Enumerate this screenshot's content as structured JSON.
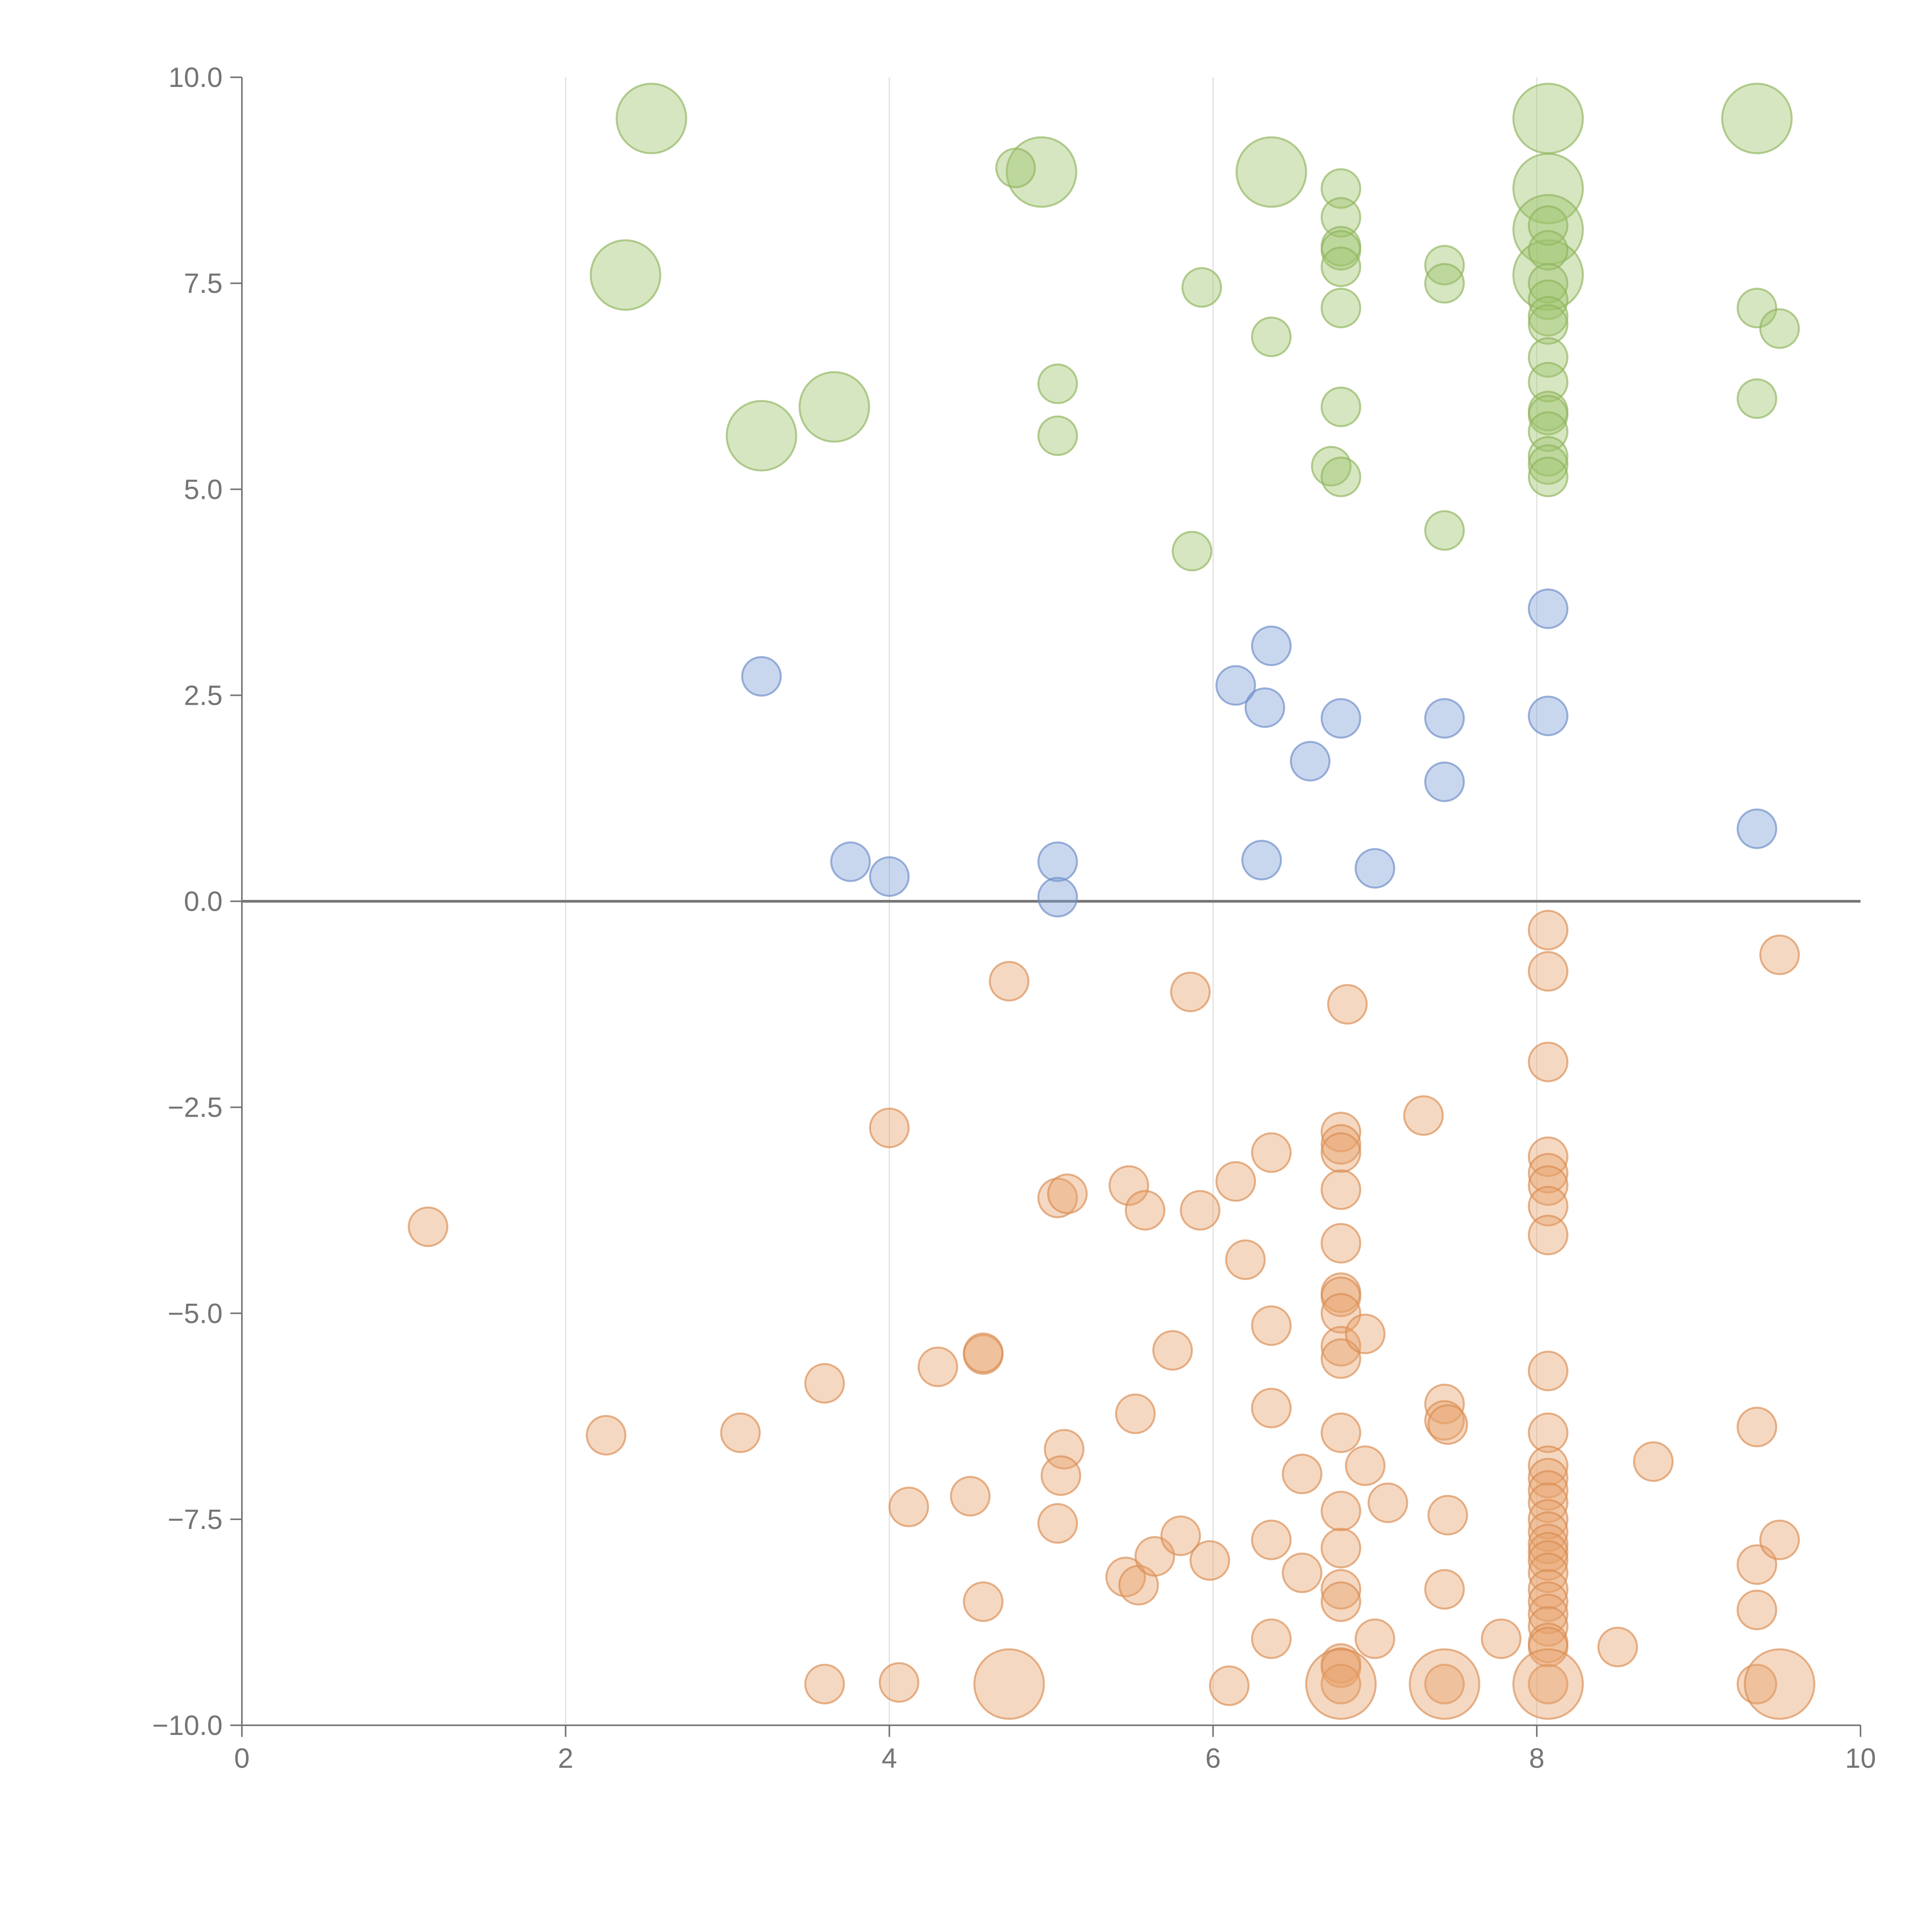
{
  "chart_data": {
    "type": "scatter",
    "title": "",
    "xlabel": "",
    "ylabel": "",
    "xlim": [
      0,
      10
    ],
    "ylim": [
      -10,
      10
    ],
    "x_ticks": [
      "0",
      "2",
      "4",
      "6",
      "8",
      "10"
    ],
    "y_ticks": [
      "10.0",
      "7.5",
      "5.0",
      "2.5",
      "0.0",
      "−2.5",
      "−5.0",
      "−7.5",
      "−10.0"
    ],
    "x_grid": true,
    "zero_line": true,
    "legend": "none",
    "colors": {
      "green": "#9dc36b",
      "blue": "#7f9fd6",
      "orange": "#e8a36b",
      "green_stroke": "#8fb45c",
      "blue_stroke": "#6a8bc6",
      "orange_stroke": "#d98c52",
      "axis": "#757575",
      "grid": "#e0e0e0",
      "zero_line": "#777777"
    },
    "series": [
      {
        "name": "green",
        "color_key": "green",
        "points": [
          [
            2.53,
            9.5,
            3
          ],
          [
            2.37,
            7.6,
            3
          ],
          [
            3.66,
            6.0,
            3
          ],
          [
            3.21,
            5.65,
            3
          ],
          [
            4.94,
            8.85,
            3
          ],
          [
            4.78,
            8.9,
            1
          ],
          [
            5.04,
            6.28,
            1
          ],
          [
            5.04,
            5.65,
            1
          ],
          [
            5.93,
            7.45,
            1
          ],
          [
            5.87,
            4.25,
            1
          ],
          [
            6.36,
            8.85,
            3
          ],
          [
            6.36,
            6.85,
            1
          ],
          [
            6.79,
            8.65,
            1
          ],
          [
            6.79,
            8.3,
            1
          ],
          [
            6.79,
            7.95,
            1
          ],
          [
            6.79,
            7.9,
            1
          ],
          [
            6.79,
            7.7,
            1
          ],
          [
            6.79,
            7.2,
            1
          ],
          [
            6.79,
            6.0,
            1
          ],
          [
            6.73,
            5.28,
            1
          ],
          [
            6.79,
            5.15,
            1
          ],
          [
            7.43,
            7.72,
            1
          ],
          [
            7.43,
            7.5,
            1
          ],
          [
            7.43,
            4.5,
            1
          ],
          [
            8.07,
            9.5,
            3
          ],
          [
            8.07,
            8.65,
            3
          ],
          [
            8.07,
            8.15,
            3
          ],
          [
            8.07,
            7.6,
            3
          ],
          [
            8.07,
            8.2,
            1
          ],
          [
            8.07,
            7.9,
            1
          ],
          [
            8.07,
            7.5,
            1
          ],
          [
            8.07,
            7.3,
            1
          ],
          [
            8.07,
            7.1,
            1
          ],
          [
            8.07,
            7.0,
            1
          ],
          [
            8.07,
            6.6,
            1
          ],
          [
            8.07,
            6.3,
            1
          ],
          [
            8.07,
            5.95,
            1
          ],
          [
            8.07,
            5.9,
            1
          ],
          [
            8.07,
            5.7,
            1
          ],
          [
            8.07,
            5.4,
            1
          ],
          [
            8.07,
            5.3,
            1
          ],
          [
            8.07,
            5.15,
            1
          ],
          [
            9.36,
            9.5,
            3
          ],
          [
            9.36,
            7.2,
            1
          ],
          [
            9.5,
            6.95,
            1
          ],
          [
            9.36,
            6.1,
            1
          ]
        ]
      },
      {
        "name": "blue",
        "color_key": "blue",
        "points": [
          [
            3.21,
            2.73,
            1
          ],
          [
            3.76,
            0.48,
            1
          ],
          [
            4.0,
            0.3,
            1
          ],
          [
            5.04,
            0.48,
            1
          ],
          [
            5.04,
            0.05,
            1
          ],
          [
            6.36,
            3.1,
            1
          ],
          [
            6.14,
            2.62,
            1
          ],
          [
            6.32,
            2.35,
            1
          ],
          [
            6.3,
            0.5,
            1
          ],
          [
            6.6,
            1.7,
            1
          ],
          [
            6.79,
            2.22,
            1
          ],
          [
            7.0,
            0.4,
            1
          ],
          [
            7.43,
            2.22,
            1
          ],
          [
            7.43,
            1.45,
            1
          ],
          [
            8.07,
            3.55,
            1
          ],
          [
            8.07,
            2.25,
            1
          ],
          [
            9.36,
            0.88,
            1
          ]
        ]
      },
      {
        "name": "orange",
        "color_key": "orange",
        "points": [
          [
            1.15,
            -3.95,
            1
          ],
          [
            2.25,
            -6.48,
            1
          ],
          [
            3.08,
            -6.45,
            1
          ],
          [
            3.6,
            -5.85,
            1
          ],
          [
            3.6,
            -9.5,
            1
          ],
          [
            4.0,
            -2.75,
            1
          ],
          [
            4.12,
            -7.35,
            1
          ],
          [
            4.06,
            -9.48,
            1
          ],
          [
            4.3,
            -5.65,
            1
          ],
          [
            4.5,
            -7.22,
            1
          ],
          [
            4.58,
            -5.5,
            1
          ],
          [
            4.58,
            -5.48,
            1
          ],
          [
            4.58,
            -8.5,
            1
          ],
          [
            4.74,
            -0.97,
            1
          ],
          [
            4.74,
            -9.5,
            3
          ],
          [
            5.04,
            -3.6,
            1
          ],
          [
            5.1,
            -3.55,
            1
          ],
          [
            5.08,
            -6.65,
            1
          ],
          [
            5.06,
            -6.97,
            1
          ],
          [
            5.04,
            -7.55,
            1
          ],
          [
            5.48,
            -3.45,
            1
          ],
          [
            5.58,
            -3.75,
            1
          ],
          [
            5.52,
            -6.22,
            1
          ],
          [
            5.46,
            -8.2,
            1
          ],
          [
            5.54,
            -8.3,
            1
          ],
          [
            5.64,
            -7.95,
            1
          ],
          [
            5.75,
            -5.45,
            1
          ],
          [
            5.8,
            -7.7,
            1
          ],
          [
            5.86,
            -1.1,
            1
          ],
          [
            5.92,
            -3.75,
            1
          ],
          [
            5.98,
            -8.0,
            1
          ],
          [
            6.1,
            -9.52,
            1
          ],
          [
            6.14,
            -3.4,
            1
          ],
          [
            6.2,
            -4.35,
            1
          ],
          [
            6.36,
            -3.05,
            1
          ],
          [
            6.36,
            -5.15,
            1
          ],
          [
            6.36,
            -6.15,
            1
          ],
          [
            6.36,
            -7.75,
            1
          ],
          [
            6.36,
            -8.95,
            1
          ],
          [
            6.55,
            -6.95,
            1
          ],
          [
            6.55,
            -8.15,
            1
          ],
          [
            6.79,
            -2.8,
            1
          ],
          [
            6.79,
            -2.95,
            1
          ],
          [
            6.79,
            -3.05,
            1
          ],
          [
            6.79,
            -3.5,
            1
          ],
          [
            6.79,
            -4.15,
            1
          ],
          [
            6.79,
            -4.75,
            1
          ],
          [
            6.79,
            -4.8,
            1
          ],
          [
            6.79,
            -5.0,
            1
          ],
          [
            6.79,
            -5.4,
            1
          ],
          [
            6.79,
            -5.55,
            1
          ],
          [
            6.79,
            -6.45,
            1
          ],
          [
            6.79,
            -7.4,
            1
          ],
          [
            6.79,
            -7.85,
            1
          ],
          [
            6.79,
            -8.35,
            1
          ],
          [
            6.79,
            -8.5,
            1
          ],
          [
            6.79,
            -9.25,
            1
          ],
          [
            6.79,
            -9.3,
            1
          ],
          [
            6.79,
            -9.5,
            1
          ],
          [
            6.79,
            -9.5,
            3
          ],
          [
            6.83,
            -1.25,
            1
          ],
          [
            6.94,
            -5.25,
            1
          ],
          [
            6.94,
            -6.85,
            1
          ],
          [
            7.0,
            -8.95,
            1
          ],
          [
            7.08,
            -7.3,
            1
          ],
          [
            7.3,
            -2.6,
            1
          ],
          [
            7.43,
            -6.1,
            1
          ],
          [
            7.43,
            -6.3,
            1
          ],
          [
            7.45,
            -6.35,
            1
          ],
          [
            7.45,
            -7.45,
            1
          ],
          [
            7.43,
            -8.35,
            1
          ],
          [
            7.43,
            -9.5,
            1
          ],
          [
            7.43,
            -9.5,
            3
          ],
          [
            7.78,
            -8.95,
            1
          ],
          [
            8.07,
            -0.35,
            1
          ],
          [
            8.07,
            -0.85,
            1
          ],
          [
            8.07,
            -1.95,
            1
          ],
          [
            8.07,
            -3.1,
            1
          ],
          [
            8.07,
            -3.3,
            1
          ],
          [
            8.07,
            -3.45,
            1
          ],
          [
            8.07,
            -3.7,
            1
          ],
          [
            8.07,
            -4.05,
            1
          ],
          [
            8.07,
            -5.7,
            1
          ],
          [
            8.07,
            -6.45,
            1
          ],
          [
            8.07,
            -6.85,
            1
          ],
          [
            8.07,
            -7.0,
            1
          ],
          [
            8.07,
            -7.15,
            1
          ],
          [
            8.07,
            -7.3,
            1
          ],
          [
            8.07,
            -7.5,
            1
          ],
          [
            8.07,
            -7.65,
            1
          ],
          [
            8.07,
            -7.8,
            1
          ],
          [
            8.07,
            -7.9,
            1
          ],
          [
            8.07,
            -8.0,
            1
          ],
          [
            8.07,
            -8.15,
            1
          ],
          [
            8.07,
            -8.35,
            1
          ],
          [
            8.07,
            -8.5,
            1
          ],
          [
            8.07,
            -8.65,
            1
          ],
          [
            8.07,
            -8.8,
            1
          ],
          [
            8.07,
            -9.0,
            1
          ],
          [
            8.07,
            -9.05,
            1
          ],
          [
            8.07,
            -9.5,
            1
          ],
          [
            8.07,
            -9.5,
            3
          ],
          [
            8.5,
            -9.05,
            1
          ],
          [
            8.72,
            -6.8,
            1
          ],
          [
            9.36,
            -6.38,
            1
          ],
          [
            9.36,
            -8.05,
            1
          ],
          [
            9.36,
            -8.6,
            1
          ],
          [
            9.36,
            -9.5,
            1
          ],
          [
            9.5,
            -0.65,
            1
          ],
          [
            9.5,
            -7.75,
            1
          ],
          [
            9.5,
            -9.5,
            3
          ]
        ]
      }
    ]
  }
}
